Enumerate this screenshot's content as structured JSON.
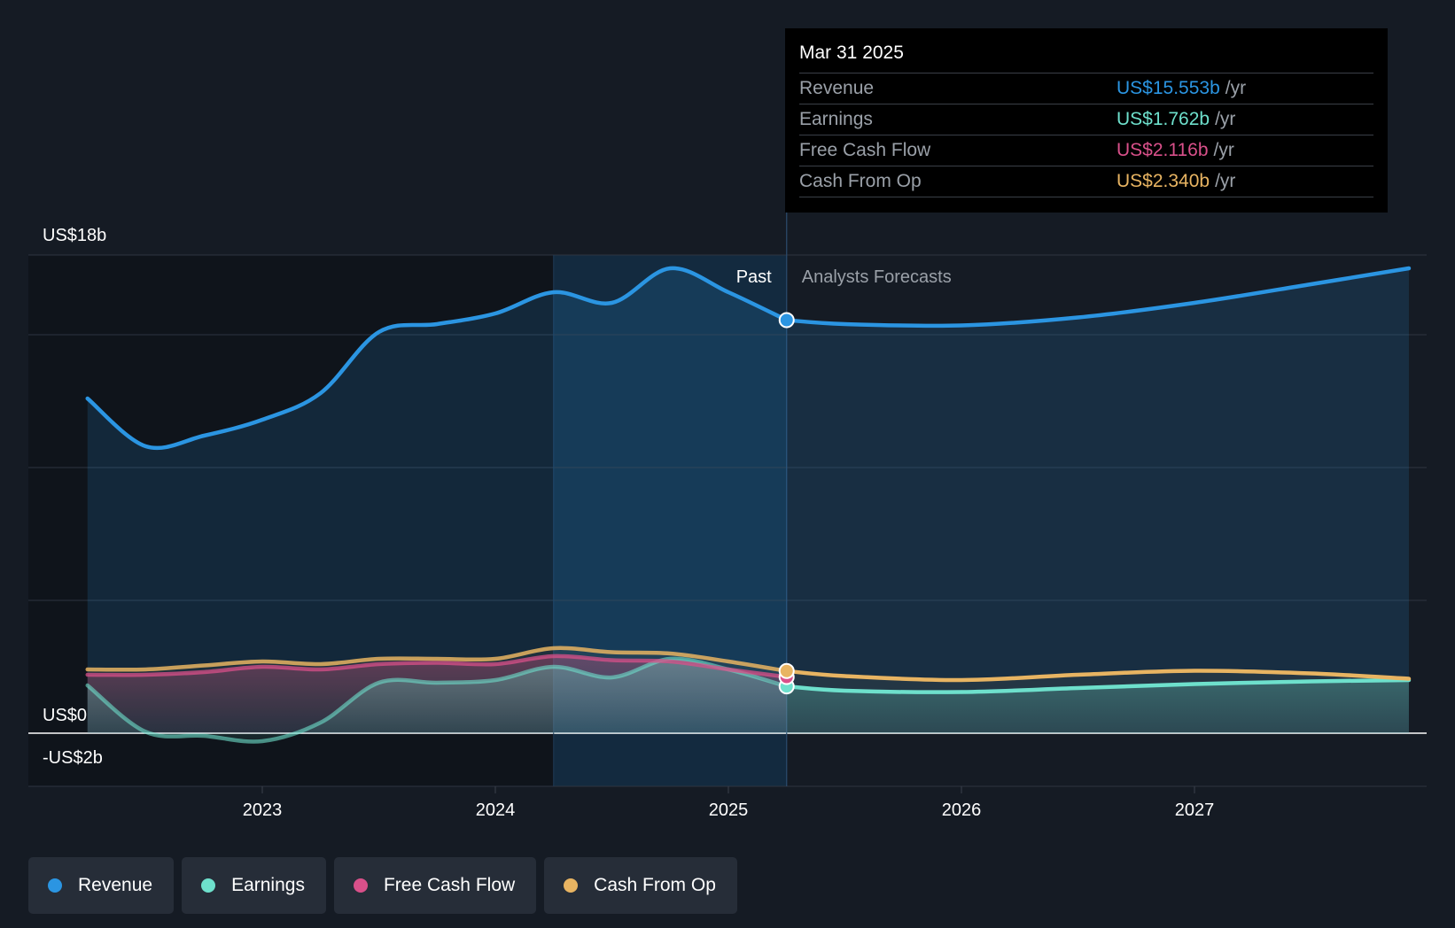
{
  "chart_data": {
    "type": "area",
    "y_ticks_labeled": [
      {
        "value": 18,
        "label": "US$18b"
      },
      {
        "value": 0,
        "label": "US$0"
      },
      {
        "value": -2,
        "label": "-US$2b"
      }
    ],
    "ylim": [
      -2,
      18
    ],
    "y_gridlines": [
      18,
      15,
      10,
      5,
      0,
      -2
    ],
    "xlim": [
      2022.0,
      2027.92
    ],
    "x_ticks": [
      {
        "value": 2023,
        "label": "2023"
      },
      {
        "value": 2024,
        "label": "2024"
      },
      {
        "value": 2025,
        "label": "2025"
      },
      {
        "value": 2026,
        "label": "2026"
      },
      {
        "value": 2027,
        "label": "2027"
      }
    ],
    "past_label": "Past",
    "forecast_label": "Analysts Forecasts",
    "divider_x": 2025.25,
    "highlight_start_x": 2024.25,
    "series": [
      {
        "name": "Revenue",
        "color": "#2b95e2",
        "points": [
          [
            2022.25,
            12.6
          ],
          [
            2022.5,
            10.8
          ],
          [
            2022.75,
            11.2
          ],
          [
            2023.0,
            11.8
          ],
          [
            2023.25,
            12.8
          ],
          [
            2023.5,
            15.1
          ],
          [
            2023.75,
            15.4
          ],
          [
            2024.0,
            15.8
          ],
          [
            2024.25,
            16.6
          ],
          [
            2024.5,
            16.2
          ],
          [
            2024.75,
            17.5
          ],
          [
            2025.0,
            16.6
          ],
          [
            2025.25,
            15.55
          ],
          [
            2025.5,
            15.4
          ],
          [
            2026.0,
            15.35
          ],
          [
            2026.5,
            15.65
          ],
          [
            2027.0,
            16.2
          ],
          [
            2027.5,
            16.9
          ],
          [
            2027.92,
            17.5
          ]
        ]
      },
      {
        "name": "Earnings",
        "color": "#6ee0cc",
        "points": [
          [
            2022.25,
            1.8
          ],
          [
            2022.5,
            0.05
          ],
          [
            2022.75,
            -0.1
          ],
          [
            2023.0,
            -0.3
          ],
          [
            2023.25,
            0.4
          ],
          [
            2023.5,
            1.9
          ],
          [
            2023.75,
            1.9
          ],
          [
            2024.0,
            2.0
          ],
          [
            2024.25,
            2.5
          ],
          [
            2024.5,
            2.1
          ],
          [
            2024.75,
            2.8
          ],
          [
            2025.0,
            2.4
          ],
          [
            2025.25,
            1.762
          ],
          [
            2025.5,
            1.6
          ],
          [
            2026.0,
            1.55
          ],
          [
            2026.5,
            1.7
          ],
          [
            2027.0,
            1.85
          ],
          [
            2027.5,
            1.95
          ],
          [
            2027.92,
            2.0
          ]
        ]
      },
      {
        "name": "Free Cash Flow",
        "color": "#d9508a",
        "points": [
          [
            2022.25,
            2.2
          ],
          [
            2022.5,
            2.2
          ],
          [
            2022.75,
            2.3
          ],
          [
            2023.0,
            2.5
          ],
          [
            2023.25,
            2.4
          ],
          [
            2023.5,
            2.6
          ],
          [
            2023.75,
            2.65
          ],
          [
            2024.0,
            2.6
          ],
          [
            2024.25,
            2.9
          ],
          [
            2024.5,
            2.75
          ],
          [
            2024.75,
            2.7
          ],
          [
            2025.0,
            2.4
          ],
          [
            2025.25,
            2.116
          ]
        ]
      },
      {
        "name": "Cash From Op",
        "color": "#e8b462",
        "points": [
          [
            2022.25,
            2.4
          ],
          [
            2022.5,
            2.4
          ],
          [
            2022.75,
            2.55
          ],
          [
            2023.0,
            2.7
          ],
          [
            2023.25,
            2.6
          ],
          [
            2023.5,
            2.8
          ],
          [
            2023.75,
            2.8
          ],
          [
            2024.0,
            2.8
          ],
          [
            2024.25,
            3.2
          ],
          [
            2024.5,
            3.05
          ],
          [
            2024.75,
            3.0
          ],
          [
            2025.0,
            2.7
          ],
          [
            2025.25,
            2.34
          ],
          [
            2025.5,
            2.15
          ],
          [
            2026.0,
            2.0
          ],
          [
            2026.5,
            2.2
          ],
          [
            2027.0,
            2.35
          ],
          [
            2027.5,
            2.25
          ],
          [
            2027.92,
            2.05
          ]
        ]
      }
    ]
  },
  "tooltip": {
    "date": "Mar 31 2025",
    "rows": [
      {
        "label": "Revenue",
        "value": "US$15.553b",
        "unit": "/yr",
        "color": "#2b95e2"
      },
      {
        "label": "Earnings",
        "value": "US$1.762b",
        "unit": "/yr",
        "color": "#6ee0cc"
      },
      {
        "label": "Free Cash Flow",
        "value": "US$2.116b",
        "unit": "/yr",
        "color": "#d9508a"
      },
      {
        "label": "Cash From Op",
        "value": "US$2.340b",
        "unit": "/yr",
        "color": "#e8b462"
      }
    ]
  },
  "legend": [
    {
      "label": "Revenue",
      "color": "#2b95e2"
    },
    {
      "label": "Earnings",
      "color": "#6ee0cc"
    },
    {
      "label": "Free Cash Flow",
      "color": "#d9508a"
    },
    {
      "label": "Cash From Op",
      "color": "#e8b462"
    }
  ]
}
